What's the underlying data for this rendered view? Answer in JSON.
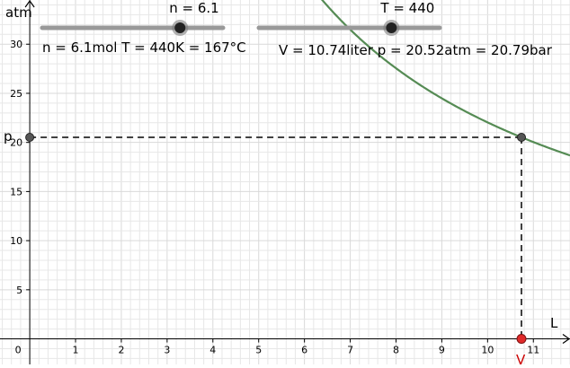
{
  "axes": {
    "y_axis_label": "atm",
    "x_axis_label": "L",
    "x_ticks": [
      {
        "v": 0,
        "label": "0"
      },
      {
        "v": 1,
        "label": "1"
      },
      {
        "v": 2,
        "label": "2"
      },
      {
        "v": 3,
        "label": "3"
      },
      {
        "v": 4,
        "label": "4"
      },
      {
        "v": 5,
        "label": "5"
      },
      {
        "v": 6,
        "label": "6"
      },
      {
        "v": 7,
        "label": "7"
      },
      {
        "v": 8,
        "label": "8"
      },
      {
        "v": 9,
        "label": "9"
      },
      {
        "v": 10,
        "label": "10"
      },
      {
        "v": 11,
        "label": "11"
      }
    ],
    "y_ticks": [
      {
        "v": 5,
        "label": "5"
      },
      {
        "v": 10,
        "label": "10"
      },
      {
        "v": 15,
        "label": "15"
      },
      {
        "v": 20,
        "label": "20"
      },
      {
        "v": 25,
        "label": "25"
      },
      {
        "v": 30,
        "label": "30"
      }
    ],
    "x_range": [
      -0.65,
      11.8
    ],
    "y_range": [
      -2.6,
      34.5
    ]
  },
  "sliders": {
    "n": {
      "label": "n = 6.1",
      "value": 6.1,
      "min": 0,
      "max": 8
    },
    "T": {
      "label": "T = 440",
      "value": 440,
      "min": 0,
      "max": 600
    }
  },
  "readouts": {
    "left": "n = 6.1mol   T = 440K = 167°C",
    "right": "V = 10.74liter p = 20.52atm = 20.79bar"
  },
  "points": {
    "p_label": "p",
    "v_label": "V",
    "volume": 10.74,
    "pressure": 20.52
  },
  "curve": {
    "constant": 220.4
  },
  "colors": {
    "curve": "#558b54",
    "slider_track": "#999999",
    "v_point": "#e02a2a",
    "v_label": "#cc0000",
    "grid": "#e7e7e7",
    "dashed": "#404040"
  }
}
